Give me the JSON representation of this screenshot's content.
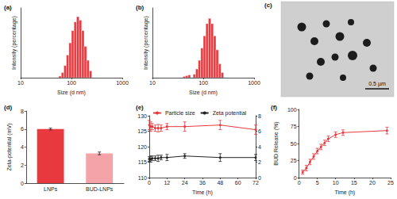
{
  "chart_data": [
    {
      "type": "histogram",
      "title": "(a)",
      "x_label": "Size (d nm)",
      "y_label": "Intensity (percentage)",
      "bins": [
        56.2,
        63.1,
        70.8,
        79.4,
        89.1,
        100,
        112.2,
        125.9,
        141.3,
        158.5,
        177.8,
        199.5,
        223.9,
        251.2
      ],
      "values": [
        0.5,
        1.5,
        3.5,
        6.5,
        10,
        13.5,
        16,
        17.5,
        16.5,
        13.5,
        9,
        5,
        2
      ],
      "color": "#e8393f",
      "log": "x",
      "xlim": [
        10,
        1000
      ],
      "xticks": [
        10,
        100,
        1000
      ],
      "ylim": [
        0,
        20
      ],
      "tick_labels": "x",
      "grid": false
    },
    {
      "type": "histogram",
      "title": "(b)",
      "x_label": "Size (d nm)",
      "y_label": "Intensity (percentage)",
      "bins": [
        39.8,
        44.7,
        50.1,
        56.2,
        63.1,
        70.8,
        79.4,
        89.1,
        100,
        112.2,
        125.9,
        141.3,
        158.5,
        177.8,
        199.5,
        223.9,
        251.2
      ],
      "values": [
        0.4,
        0.6,
        0.8,
        0,
        1,
        2.5,
        5,
        8.5,
        12,
        15.5,
        17,
        15.5,
        12,
        8,
        4,
        1.5
      ],
      "color": "#e8393f",
      "log": "x",
      "xlim": [
        10,
        1000
      ],
      "xticks": [
        10,
        100,
        1000
      ],
      "ylim": [
        0,
        20
      ],
      "tick_labels": "x",
      "grid": false
    },
    {
      "type": "bar",
      "title": "(d)",
      "y_label": "Zeta-potential (mV)",
      "categories": [
        "LNPs",
        "BUD-LNPs"
      ],
      "values": [
        6.0,
        3.3
      ],
      "errors": [
        0.1,
        0.15
      ],
      "colors": [
        "#e8393f",
        "#f4a3a8"
      ],
      "ylim": [
        0,
        8
      ],
      "yticks": [
        0,
        2,
        4,
        6,
        8
      ],
      "grid": false
    },
    {
      "type": "line",
      "title": "(e)",
      "x_label": "Time (h)",
      "x": [
        0,
        1,
        2,
        4,
        6,
        8,
        12,
        24,
        48,
        72
      ],
      "series": [
        {
          "name": "Particle size",
          "color": "#e8393f",
          "values": [
            127,
            126.5,
            126.5,
            126,
            126,
            126,
            126.5,
            126.5,
            127,
            125.5
          ],
          "errors": [
            1.5,
            1.5,
            1,
            1,
            1.2,
            1,
            1,
            1.5,
            1.5,
            1.5
          ]
        },
        {
          "name": "Zeta potential",
          "color": "#222222",
          "axis": "y2",
          "values": [
            2.4,
            2.4,
            2.5,
            2.5,
            2.5,
            2.6,
            2.6,
            2.8,
            2.6,
            2.6
          ],
          "errors": [
            0.3,
            0.4,
            0.3,
            0.3,
            0.4,
            0.3,
            0.4,
            0.3,
            0.5,
            0.4
          ]
        }
      ],
      "xlim": [
        0,
        72
      ],
      "xticks": [
        0,
        12,
        24,
        36,
        48,
        60,
        72
      ],
      "ylim": [
        110,
        130
      ],
      "yticks": [
        110,
        115,
        120,
        125,
        130
      ],
      "y2lim": [
        0,
        8
      ],
      "y2ticks": [
        0,
        2,
        4,
        6,
        8
      ],
      "legend": "top",
      "marker": "circle",
      "grid": false
    },
    {
      "type": "line",
      "title": "(f)",
      "x_label": "Time (h)",
      "y_label": "BUD Release (%)",
      "x": [
        1,
        2,
        3,
        4,
        5,
        6,
        7,
        8,
        10,
        12,
        24
      ],
      "values": [
        8,
        14,
        23,
        31,
        39,
        45,
        51,
        57,
        63,
        66,
        69
      ],
      "errors": [
        3,
        4,
        4,
        4,
        4,
        4,
        4,
        4,
        4,
        4,
        5
      ],
      "color": "#e8393f",
      "xlim": [
        0,
        25
      ],
      "xticks": [
        0,
        5,
        10,
        15,
        20,
        25
      ],
      "ylim": [
        0,
        100
      ],
      "yticks": [
        0,
        25,
        50,
        75,
        100
      ],
      "marker": "circle",
      "grid": false
    }
  ],
  "image_panel": {
    "title": "(c)",
    "scale_bar": "0.5 µm"
  }
}
